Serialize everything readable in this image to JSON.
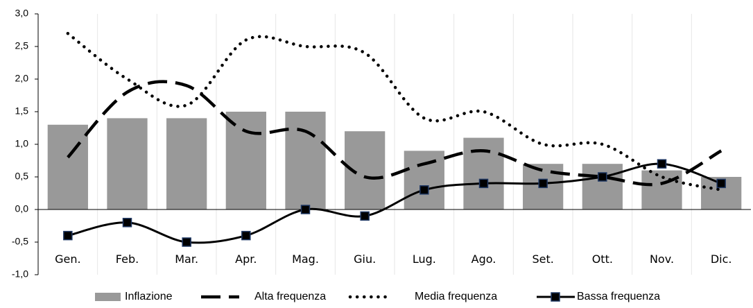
{
  "chart_data": {
    "type": "combo",
    "categories": [
      "Gen.",
      "Feb.",
      "Mar.",
      "Apr.",
      "Mag.",
      "Giu.",
      "Lug.",
      "Ago.",
      "Set.",
      "Ott.",
      "Nov.",
      "Dic."
    ],
    "series": [
      {
        "name": "Inflazione",
        "type": "bar",
        "color": "#999999",
        "values": [
          1.3,
          1.4,
          1.4,
          1.5,
          1.5,
          1.2,
          0.9,
          1.1,
          0.7,
          0.7,
          0.6,
          0.5
        ]
      },
      {
        "name": "Alta frequenza",
        "type": "line",
        "dash": "dashed",
        "color": "#000000",
        "values": [
          0.8,
          1.8,
          1.9,
          1.2,
          1.2,
          0.5,
          0.7,
          0.9,
          0.6,
          0.5,
          0.4,
          0.9
        ]
      },
      {
        "name": "Media frequenza",
        "type": "line",
        "dash": "dotted",
        "color": "#000000",
        "values": [
          2.7,
          2.0,
          1.6,
          2.6,
          2.5,
          2.4,
          1.4,
          1.5,
          1.0,
          1.0,
          0.5,
          0.3
        ]
      },
      {
        "name": "Bassa frequenza",
        "type": "line",
        "dash": "solid",
        "marker": "square",
        "color": "#000000",
        "markercolor": "#1f3864",
        "values": [
          -0.4,
          -0.2,
          -0.5,
          -0.4,
          0.0,
          -0.1,
          0.3,
          0.4,
          0.4,
          0.5,
          0.7,
          0.4
        ]
      }
    ],
    "ylim": [
      -1.0,
      3.0
    ],
    "yticks": [
      {
        "value": -1.0,
        "label": "-1,0"
      },
      {
        "value": -0.5,
        "label": "-0,5"
      },
      {
        "value": 0,
        "label": "0,0"
      },
      {
        "value": 0.5,
        "label": "0,5"
      },
      {
        "value": 1.0,
        "label": "1,0"
      },
      {
        "value": 1.5,
        "label": "1,5"
      },
      {
        "value": 2.0,
        "label": "2,0"
      },
      {
        "value": 2.5,
        "label": "2,5"
      },
      {
        "value": 3.0,
        "label": "3,0"
      }
    ],
    "grid": true,
    "legend": "bottom"
  }
}
